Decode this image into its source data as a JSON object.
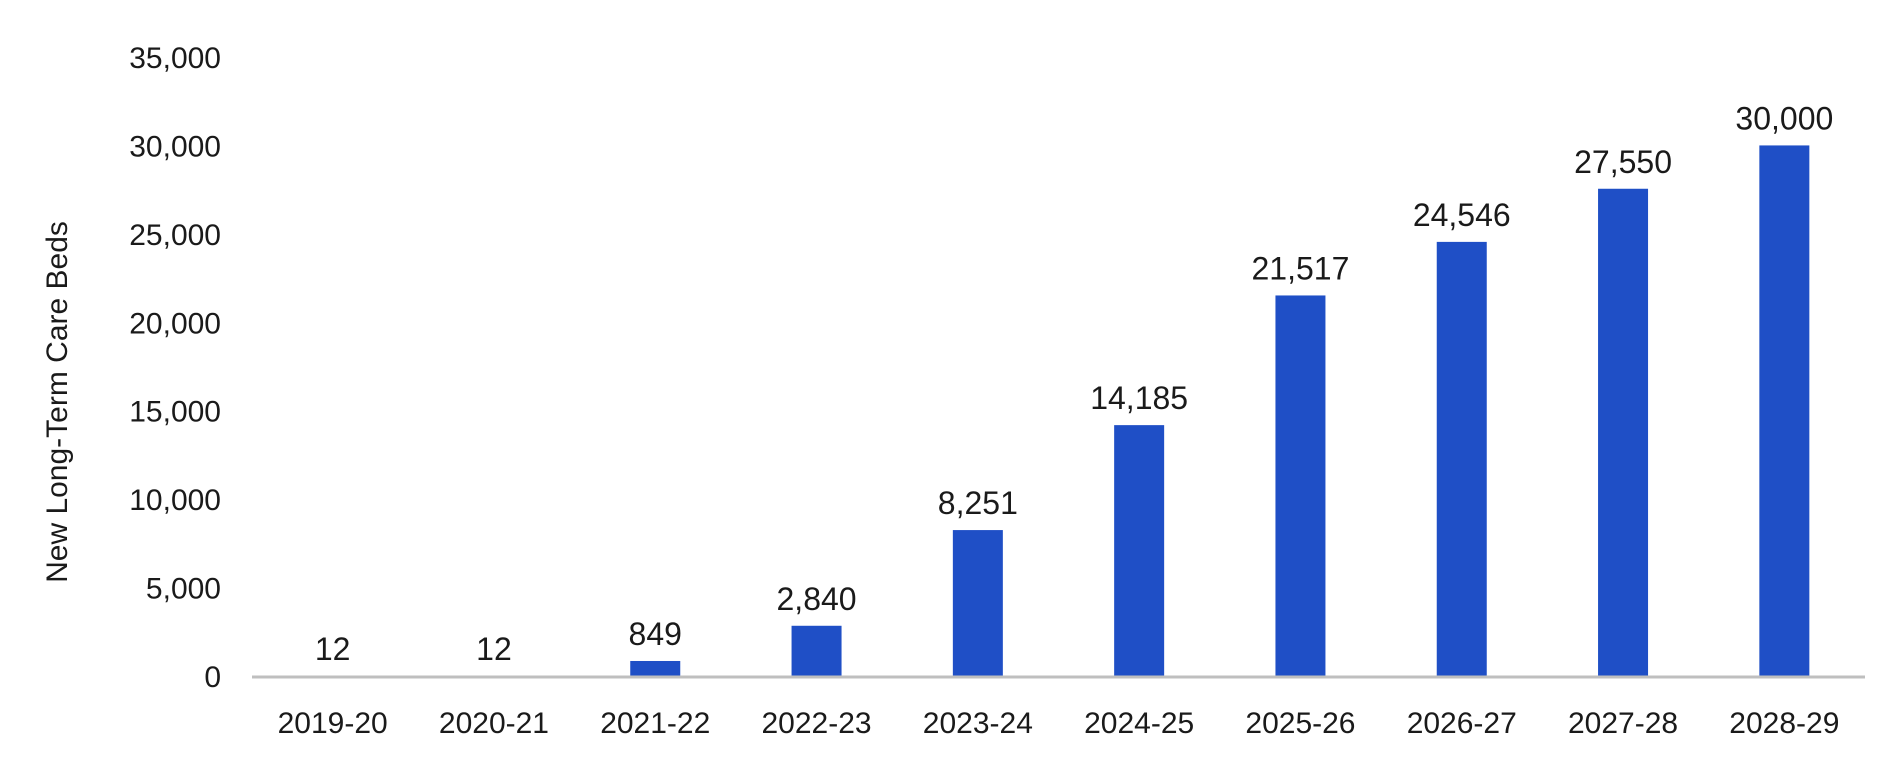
{
  "chart_data": {
    "type": "bar",
    "title": "",
    "xlabel": "",
    "ylabel": "New Long-Term Care Beds",
    "categories": [
      "2019-20",
      "2020-21",
      "2021-22",
      "2022-23",
      "2023-24",
      "2024-25",
      "2025-26",
      "2026-27",
      "2027-28",
      "2028-29"
    ],
    "values": [
      12,
      12,
      849,
      2840,
      8251,
      14185,
      21517,
      24546,
      27550,
      30000
    ],
    "data_labels": [
      "12",
      "12",
      "849",
      "2,840",
      "8,251",
      "14,185",
      "21,517",
      "24,546",
      "27,550",
      "30,000"
    ],
    "ylim": [
      0,
      35000
    ],
    "yticks": [
      0,
      5000,
      10000,
      15000,
      20000,
      25000,
      30000,
      35000
    ],
    "ytick_labels": [
      "0",
      "5,000",
      "10,000",
      "15,000",
      "20,000",
      "25,000",
      "30,000",
      "35,000"
    ],
    "grid": false,
    "legend": "none",
    "bar_color": "#1f4fc6",
    "axis_color": "#bfbfbf"
  }
}
